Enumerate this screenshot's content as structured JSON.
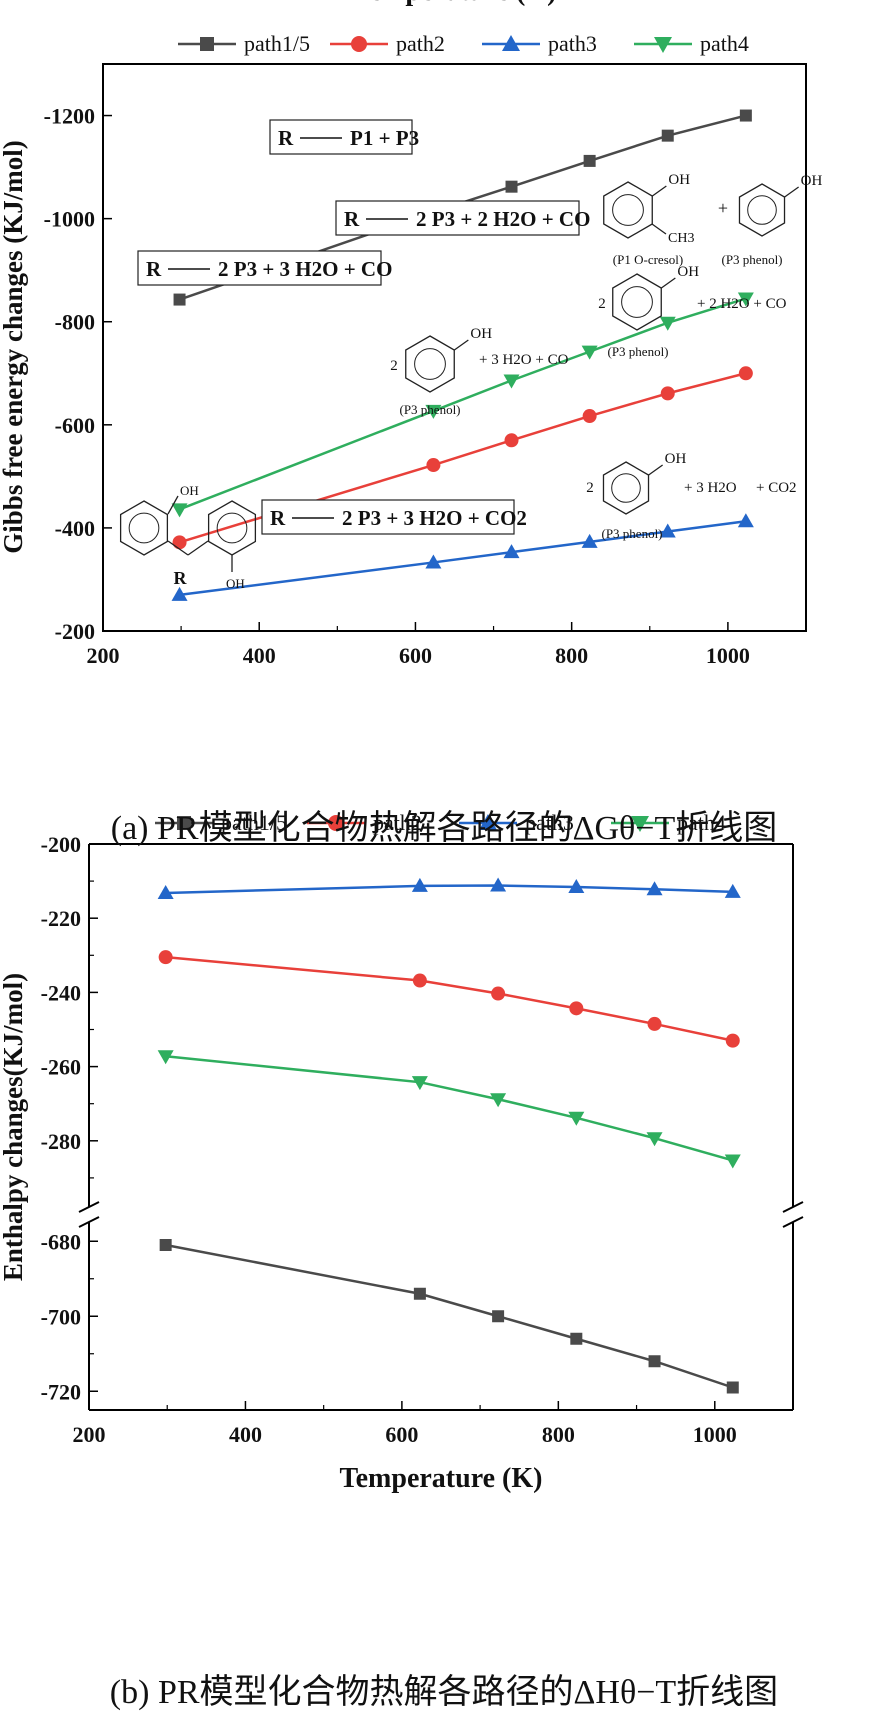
{
  "chart_data": [
    {
      "type": "line",
      "ylabel": "Gibbs free energy changes (KJ/mol)",
      "xlabel": "Temperature (K)",
      "xlim": [
        200,
        1100
      ],
      "ylim": [
        -1300,
        -200
      ],
      "x_ticks": [
        200,
        400,
        600,
        800,
        1000
      ],
      "y_ticks": [
        -200,
        -400,
        -600,
        -800,
        -1000,
        -1200
      ],
      "x_tick_labels": [
        "200",
        "400",
        "600",
        "800",
        "1000"
      ],
      "y_tick_labels": [
        "-200",
        "-400",
        "-600",
        "-800",
        "-1000",
        "-1200"
      ],
      "legend_position": "top",
      "series": [
        {
          "name": "path1/5",
          "color": "#4a4a4a",
          "marker": "square",
          "x": [
            298,
            623,
            723,
            823,
            923,
            1023
          ],
          "y": [
            -843,
            -1013,
            -1062,
            -1112,
            -1161,
            -1200
          ]
        },
        {
          "name": "path2",
          "color": "#e8403a",
          "marker": "circle",
          "x": [
            298,
            623,
            723,
            823,
            923,
            1023
          ],
          "y": [
            -372,
            -522,
            -570,
            -617,
            -661,
            -700
          ]
        },
        {
          "name": "path3",
          "color": "#2366c9",
          "marker": "triangle-up",
          "x": [
            298,
            623,
            723,
            823,
            923,
            1023
          ],
          "y": [
            -270,
            -333,
            -353,
            -373,
            -393,
            -413
          ]
        },
        {
          "name": "path4",
          "color": "#2fae5e",
          "marker": "triangle-down",
          "x": [
            298,
            623,
            723,
            823,
            923,
            1023
          ],
          "y": [
            -436,
            -627,
            -686,
            -742,
            -798,
            -845
          ]
        }
      ],
      "annotations": {
        "eq_path3": {
          "lhs": "R",
          "rhs": "P1 + P3"
        },
        "eq_path2": {
          "lhs": "R",
          "rhs": "2 P3 + 2 H2O + CO"
        },
        "eq_path4": {
          "lhs": "R",
          "rhs": "2 P3 + 3 H2O + CO"
        },
        "eq_path15": {
          "lhs": "R",
          "rhs": "2 P3 + 3 H2O + CO2"
        },
        "struct_oh": "OH",
        "struct_ch3": "CH3",
        "struct_plus": "+",
        "struct_two": "2",
        "label_p1": "(P1  O-cresol)",
        "label_p3": "(P3  phenol)",
        "label_R": "R",
        "prod_path2": "+ 2 H2O + CO",
        "prod_path4": "+ 3 H2O + CO",
        "prod_path15_a": "+ 3 H2O",
        "prod_path15_b": "+ CO2"
      }
    },
    {
      "type": "line",
      "ylabel": "Enthalpy changes(KJ/mol)",
      "xlabel": "Temperature (K)",
      "xlim": [
        200,
        1100
      ],
      "broken_axis": true,
      "upper_ylim": [
        -200,
        -300
      ],
      "lower_ylim": [
        -673,
        -725
      ],
      "x_ticks": [
        200,
        400,
        600,
        800,
        1000
      ],
      "upper_y_ticks": [
        -200,
        -220,
        -240,
        -260,
        -280
      ],
      "lower_y_ticks": [
        -680,
        -700,
        -720
      ],
      "x_tick_labels": [
        "200",
        "400",
        "600",
        "800",
        "1000"
      ],
      "upper_y_tick_labels": [
        "-200",
        "-220",
        "-240",
        "-260",
        "-280"
      ],
      "lower_y_tick_labels": [
        "-680",
        "-700",
        "-720"
      ],
      "legend_position": "top",
      "series": [
        {
          "name": "path1/5",
          "color": "#4a4a4a",
          "marker": "square",
          "x": [
            298,
            623,
            723,
            823,
            923,
            1023
          ],
          "y": [
            -681,
            -694,
            -700,
            -706,
            -712,
            -719
          ]
        },
        {
          "name": "path2",
          "color": "#e8403a",
          "marker": "circle",
          "x": [
            298,
            623,
            723,
            823,
            923,
            1023
          ],
          "y": [
            -230.5,
            -236.8,
            -240.3,
            -244.3,
            -248.5,
            -253.0
          ]
        },
        {
          "name": "path3",
          "color": "#2366c9",
          "marker": "triangle-up",
          "x": [
            298,
            623,
            723,
            823,
            923,
            1023
          ],
          "y": [
            -213.2,
            -211.3,
            -211.2,
            -211.6,
            -212.2,
            -212.9
          ]
        },
        {
          "name": "path4",
          "color": "#2fae5e",
          "marker": "triangle-down",
          "x": [
            298,
            623,
            723,
            823,
            923,
            1023
          ],
          "y": [
            -257.2,
            -264.2,
            -268.8,
            -273.8,
            -279.3,
            -285.3
          ]
        }
      ]
    }
  ],
  "captions": {
    "a": "(a) PR模型化合物热解各路径的ΔGθ−T折线图",
    "b": "(b) PR模型化合物热解各路径的ΔHθ−T折线图"
  }
}
